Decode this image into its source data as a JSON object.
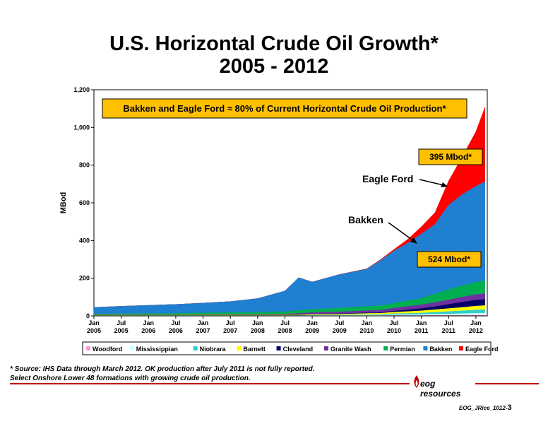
{
  "page": {
    "title_line1": "U.S. Horizontal Crude Oil Growth*",
    "title_line2": "2005 - 2012",
    "footnote_1": "* Source: IHS Data through March 2012. OK production after July 2011 is not fully reported.",
    "footnote_2": "Select Onshore Lower 48 formations with growing crude oil production.",
    "logo_text": "eog resources",
    "ref_text": "EOG_JRice_1012-",
    "page_number": "3"
  },
  "chart_data": {
    "type": "area",
    "stacked": true,
    "ylabel": "MBod",
    "ylim": [
      0,
      1200
    ],
    "yticks": [
      "0",
      "200",
      "400",
      "600",
      "800",
      "1,000",
      "1,200"
    ],
    "x_tick_labels": [
      [
        "Jan",
        "2005"
      ],
      [
        "Jul",
        "2005"
      ],
      [
        "Jan",
        "2006"
      ],
      [
        "Jul",
        "2006"
      ],
      [
        "Jan",
        "2007"
      ],
      [
        "Jul",
        "2007"
      ],
      [
        "Jan",
        "2008"
      ],
      [
        "Jul",
        "2008"
      ],
      [
        "Jan",
        "2009"
      ],
      [
        "Jul",
        "2009"
      ],
      [
        "Jan",
        "2010"
      ],
      [
        "Jul",
        "2010"
      ],
      [
        "Jan",
        "2011"
      ],
      [
        "Jul",
        "2011"
      ],
      [
        "Jan",
        "2012"
      ]
    ],
    "x_start": "2005-01",
    "x_end": "2012-03",
    "x": [
      "2005-01",
      "2005-07",
      "2006-01",
      "2006-07",
      "2007-01",
      "2007-07",
      "2008-01",
      "2008-07",
      "2008-10",
      "2009-01",
      "2009-07",
      "2010-01",
      "2010-04",
      "2010-07",
      "2010-10",
      "2011-01",
      "2011-04",
      "2011-07",
      "2011-10",
      "2012-01",
      "2012-03"
    ],
    "legend_position": "bottom",
    "series": [
      {
        "name": "Woodford",
        "color": "#ff99cc",
        "values": [
          0,
          0,
          0,
          0,
          0,
          0,
          0,
          0,
          0,
          1,
          1,
          1,
          1,
          2,
          2,
          2,
          3,
          3,
          3,
          4,
          4
        ]
      },
      {
        "name": "Mississippian",
        "color": "#ccffff",
        "values": [
          1,
          1,
          1,
          1,
          1,
          1,
          1,
          1,
          1,
          2,
          2,
          3,
          3,
          4,
          4,
          5,
          6,
          7,
          9,
          10,
          11
        ]
      },
      {
        "name": "Niobrara",
        "color": "#33cccc",
        "values": [
          1,
          1,
          1,
          1,
          1,
          1,
          1,
          1,
          1,
          1,
          2,
          3,
          4,
          6,
          7,
          8,
          10,
          13,
          15,
          17,
          18
        ]
      },
      {
        "name": "Barnett",
        "color": "#ffff00",
        "values": [
          2,
          2,
          2,
          2,
          3,
          3,
          3,
          3,
          3,
          4,
          4,
          6,
          6,
          8,
          10,
          12,
          14,
          16,
          18,
          21,
          22
        ]
      },
      {
        "name": "Cleveland",
        "color": "#000066",
        "values": [
          1,
          1,
          1,
          1,
          1,
          1,
          1,
          1,
          2,
          2,
          2,
          3,
          3,
          6,
          9,
          12,
          16,
          22,
          28,
          32,
          32
        ]
      },
      {
        "name": "Granite Wash",
        "color": "#7030a0",
        "values": [
          1,
          1,
          1,
          1,
          2,
          2,
          3,
          4,
          6,
          8,
          10,
          12,
          13,
          15,
          18,
          20,
          22,
          24,
          27,
          29,
          31
        ]
      },
      {
        "name": "Permian",
        "color": "#00b050",
        "values": [
          4,
          5,
          6,
          7,
          8,
          9,
          10,
          12,
          15,
          17,
          20,
          22,
          24,
          26,
          30,
          34,
          45,
          55,
          60,
          65,
          70
        ]
      },
      {
        "name": "Bakken",
        "color": "#1f7fd0",
        "values": [
          35,
          40,
          44,
          48,
          52,
          59,
          73,
          110,
          175,
          145,
          178,
          198,
          240,
          278,
          306,
          342,
          370,
          448,
          484,
          510,
          524
        ]
      },
      {
        "name": "Eagle Ford",
        "color": "#ff0000",
        "values": [
          0,
          0,
          0,
          0,
          0,
          0,
          0,
          0,
          0,
          0,
          1,
          2,
          4,
          8,
          20,
          38,
          62,
          128,
          200,
          290,
          395
        ]
      }
    ],
    "annotations": {
      "headline": "Bakken and Eagle Ford ≈ 80% of Current Horizontal Crude Oil Production*",
      "eagle_ford_label": "Eagle Ford",
      "bakken_label": "Bakken",
      "eagle_ford_value": "395 Mbod*",
      "bakken_value": "524 Mbod*"
    },
    "colors": {
      "annotation_box_fill": "#ffc000",
      "border_red": "#c00000"
    }
  }
}
